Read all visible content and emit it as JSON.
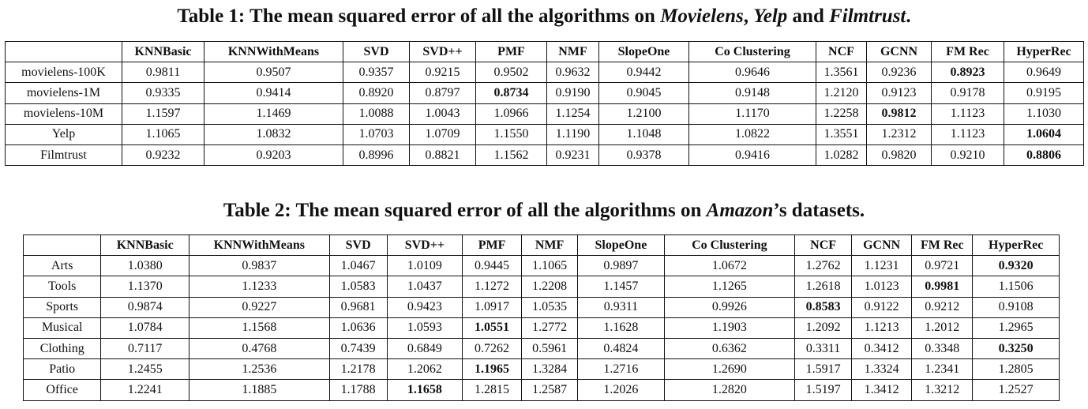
{
  "table1": {
    "caption": {
      "prefix": "Table 1: The mean squared error of all the algorithms on ",
      "d1": "Movielens",
      "sep1": ", ",
      "d2": "Yelp",
      "sep2": " and ",
      "d3": "Filmtrust",
      "suffix": "."
    },
    "columns": [
      "",
      "KNNBasic",
      "KNNWithMeans",
      "SVD",
      "SVD++",
      "PMF",
      "NMF",
      "SlopeOne",
      "Co Clustering",
      "NCF",
      "GCNN",
      "FM Rec",
      "HyperRec"
    ],
    "rows": [
      {
        "label": "movielens-100K",
        "values": [
          "0.9811",
          "0.9507",
          "0.9357",
          "0.9215",
          "0.9502",
          "0.9632",
          "0.9442",
          "0.9646",
          "1.3561",
          "0.9236",
          "0.8923",
          "0.9649"
        ],
        "bold": [
          10
        ]
      },
      {
        "label": "movielens-1M",
        "values": [
          "0.9335",
          "0.9414",
          "0.8920",
          "0.8797",
          "0.8734",
          "0.9190",
          "0.9045",
          "0.9148",
          "1.2120",
          "0.9123",
          "0.9178",
          "0.9195"
        ],
        "bold": [
          4
        ]
      },
      {
        "label": "movielens-10M",
        "values": [
          "1.1597",
          "1.1469",
          "1.0088",
          "1.0043",
          "1.0966",
          "1.1254",
          "1.2100",
          "1.1170",
          "1.2258",
          "0.9812",
          "1.1123",
          "1.1030"
        ],
        "bold": [
          9
        ]
      },
      {
        "label": "Yelp",
        "values": [
          "1.1065",
          "1.0832",
          "1.0703",
          "1.0709",
          "1.1550",
          "1.1190",
          "1.1048",
          "1.0822",
          "1.3551",
          "1.2312",
          "1.1123",
          "1.0604"
        ],
        "bold": [
          11
        ]
      },
      {
        "label": "Filmtrust",
        "values": [
          "0.9232",
          "0.9203",
          "0.8996",
          "0.8821",
          "1.1562",
          "0.9231",
          "0.9378",
          "0.9416",
          "1.0282",
          "0.9820",
          "0.9210",
          "0.8806"
        ],
        "bold": [
          11
        ]
      }
    ]
  },
  "table2": {
    "caption": {
      "prefix": "Table 2: The mean squared error of all the algorithms on ",
      "d1": "Amazon",
      "suffix": "’s datasets."
    },
    "columns": [
      "",
      "KNNBasic",
      "KNNWithMeans",
      "SVD",
      "SVD++",
      "PMF",
      "NMF",
      "SlopeOne",
      "Co Clustering",
      "NCF",
      "GCNN",
      "FM Rec",
      "HyperRec"
    ],
    "rows": [
      {
        "label": "Arts",
        "values": [
          "1.0380",
          "0.9837",
          "1.0467",
          "1.0109",
          "0.9445",
          "1.1065",
          "0.9897",
          "1.0672",
          "1.2762",
          "1.1231",
          "0.9721",
          "0.9320"
        ],
        "bold": [
          11
        ]
      },
      {
        "label": "Tools",
        "values": [
          "1.1370",
          "1.1233",
          "1.0583",
          "1.0437",
          "1.1272",
          "1.2208",
          "1.1457",
          "1.1265",
          "1.2618",
          "1.0123",
          "0.9981",
          "1.1506"
        ],
        "bold": [
          10
        ]
      },
      {
        "label": "Sports",
        "values": [
          "0.9874",
          "0.9227",
          "0.9681",
          "0.9423",
          "1.0917",
          "1.0535",
          "0.9311",
          "0.9926",
          "0.8583",
          "0.9122",
          "0.9212",
          "0.9108"
        ],
        "bold": [
          8
        ]
      },
      {
        "label": "Musical",
        "values": [
          "1.0784",
          "1.1568",
          "1.0636",
          "1.0593",
          "1.0551",
          "1.2772",
          "1.1628",
          "1.1903",
          "1.2092",
          "1.1213",
          "1.2012",
          "1.2965"
        ],
        "bold": [
          4
        ]
      },
      {
        "label": "Clothing",
        "values": [
          "0.7117",
          "0.4768",
          "0.7439",
          "0.6849",
          "0.7262",
          "0.5961",
          "0.4824",
          "0.6362",
          "0.3311",
          "0.3412",
          "0.3348",
          "0.3250"
        ],
        "bold": [
          11
        ]
      },
      {
        "label": "Patio",
        "values": [
          "1.2455",
          "1.2536",
          "1.2178",
          "1.2062",
          "1.1965",
          "1.3284",
          "1.2716",
          "1.2690",
          "1.5917",
          "1.3324",
          "1.2341",
          "1.2805"
        ],
        "bold": [
          4
        ]
      },
      {
        "label": "Office",
        "values": [
          "1.2241",
          "1.1885",
          "1.1788",
          "1.1658",
          "1.2815",
          "1.2587",
          "1.2026",
          "1.2820",
          "1.5197",
          "1.3412",
          "1.3212",
          "1.2527"
        ],
        "bold": [
          3
        ]
      }
    ]
  }
}
